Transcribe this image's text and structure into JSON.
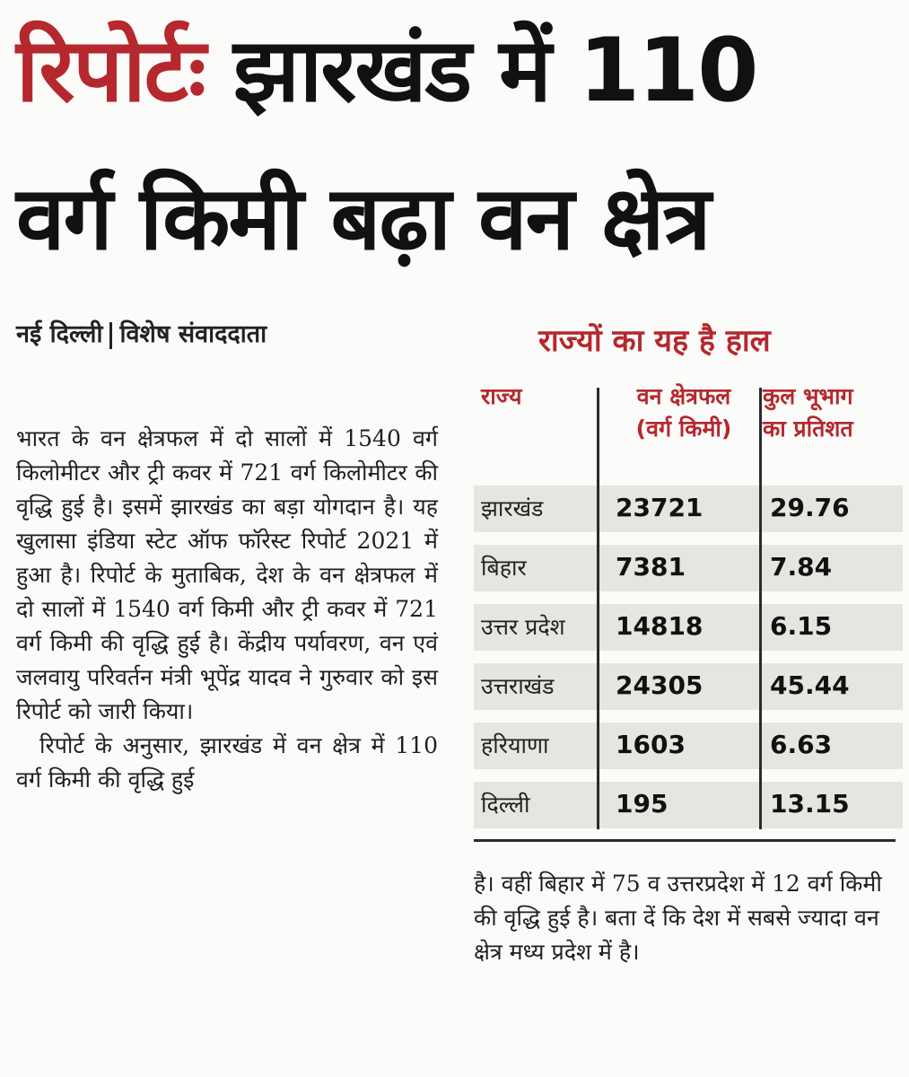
{
  "headline": {
    "tag": "रिपोर्टः",
    "line1_rest": "झारखंड में 110",
    "line2": "वर्ग किमी बढ़ा वन क्षेत्र"
  },
  "dateline": {
    "place": "नई दिल्ली",
    "byline": "विशेष संवाददाता"
  },
  "article": {
    "para1": "भारत के वन क्षेत्रफल में दो सालों में 1540 वर्ग किलोमीटर और ट्री कवर में 721 वर्ग किलोमीटर की वृद्धि हुई है। इसमें झारखंड का बड़ा योगदान है। यह खुलासा इंडिया स्टेट ऑफ फॉरेस्ट रिपोर्ट 2021 में हुआ है। रिपोर्ट के मुताबिक, देश के वन क्षेत्रफल में दो सालों में 1540 वर्ग किमी और ट्री कवर में 721 वर्ग किमी की वृद्धि हुई है। केंद्रीय पर्यावरण, वन एवं जलवायु परिवर्तन मंत्री भूपेंद्र यादव ने गुरुवार को इस रिपोर्ट को जारी किया।",
    "para2": "रिपोर्ट के अनुसार, झारखंड में वन क्षेत्र में 110 वर्ग किमी की वृद्धि हुई",
    "para3": "है। वहीं बिहार में 75 व उत्तरप्रदेश में 12 वर्ग किमी की वृद्धि हुई है। बता दें कि देश में सबसे ज्यादा वन क्षेत्र मध्य प्रदेश में है।"
  },
  "table": {
    "title": "राज्यों का यह है हाल",
    "headers": {
      "state": "राज्य",
      "area_line1": "वन क्षेत्रफल",
      "area_line2": "(वर्ग किमी)",
      "pct_line1": "कुल भूभाग",
      "pct_line2": "का प्रतिशत"
    },
    "rows": [
      {
        "state": "झारखंड",
        "area": "23721",
        "pct": "29.76"
      },
      {
        "state": "बिहार",
        "area": "7381",
        "pct": "7.84"
      },
      {
        "state": "उत्तर प्रदेश",
        "area": "14818",
        "pct": "6.15"
      },
      {
        "state": "उत्तराखंड",
        "area": "24305",
        "pct": "45.44"
      },
      {
        "state": "हरियाणा",
        "area": "1603",
        "pct": "6.63"
      },
      {
        "state": "दिल्ली",
        "area": "195",
        "pct": "13.15"
      }
    ]
  },
  "colors": {
    "accent": "#b5282e",
    "text": "#1c1c1c",
    "row_shade": "#e6e5df"
  }
}
